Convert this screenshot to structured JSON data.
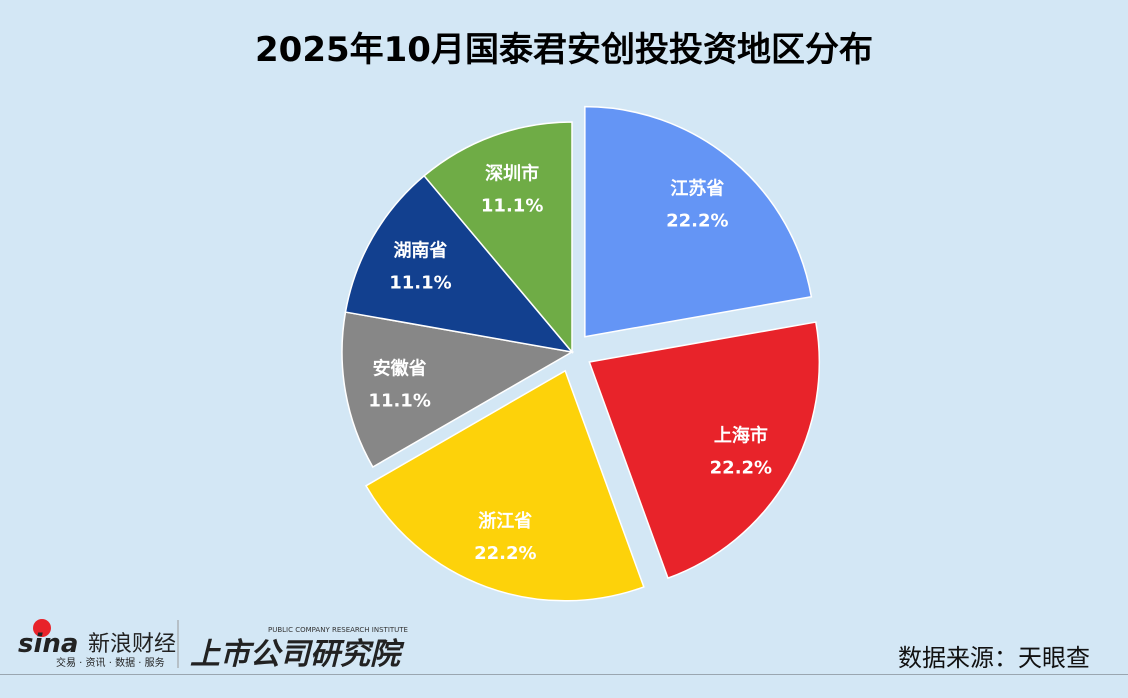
{
  "chart_data": {
    "type": "pie",
    "title": "2025年10月国泰君安创投投资地区分布",
    "slices": [
      {
        "label": "江苏省",
        "value": 22.2,
        "display": "22.2%",
        "color": "#6495F5",
        "exploded": true
      },
      {
        "label": "上海市",
        "value": 22.2,
        "display": "22.2%",
        "color": "#E8232A",
        "exploded": true
      },
      {
        "label": "浙江省",
        "value": 22.2,
        "display": "22.2%",
        "color": "#FDD20A",
        "exploded": true
      },
      {
        "label": "安徽省",
        "value": 11.1,
        "display": "11.1%",
        "color": "#878787",
        "exploded": false
      },
      {
        "label": "湖南省",
        "value": 11.1,
        "display": "11.1%",
        "color": "#12408F",
        "exploded": false
      },
      {
        "label": "深圳市",
        "value": 11.1,
        "display": "11.1%",
        "color": "#6FAC46",
        "exploded": false
      }
    ]
  },
  "footer": {
    "source": "数据来源：天眼查",
    "logo_sina": "sina 新浪财经",
    "logo_sina_sub": "交易 · 资讯 · 数据 · 服务",
    "logo_institute": "上市公司研究院",
    "logo_institute_en": "PUBLIC COMPANY RESEARCH INSTITUTE"
  }
}
